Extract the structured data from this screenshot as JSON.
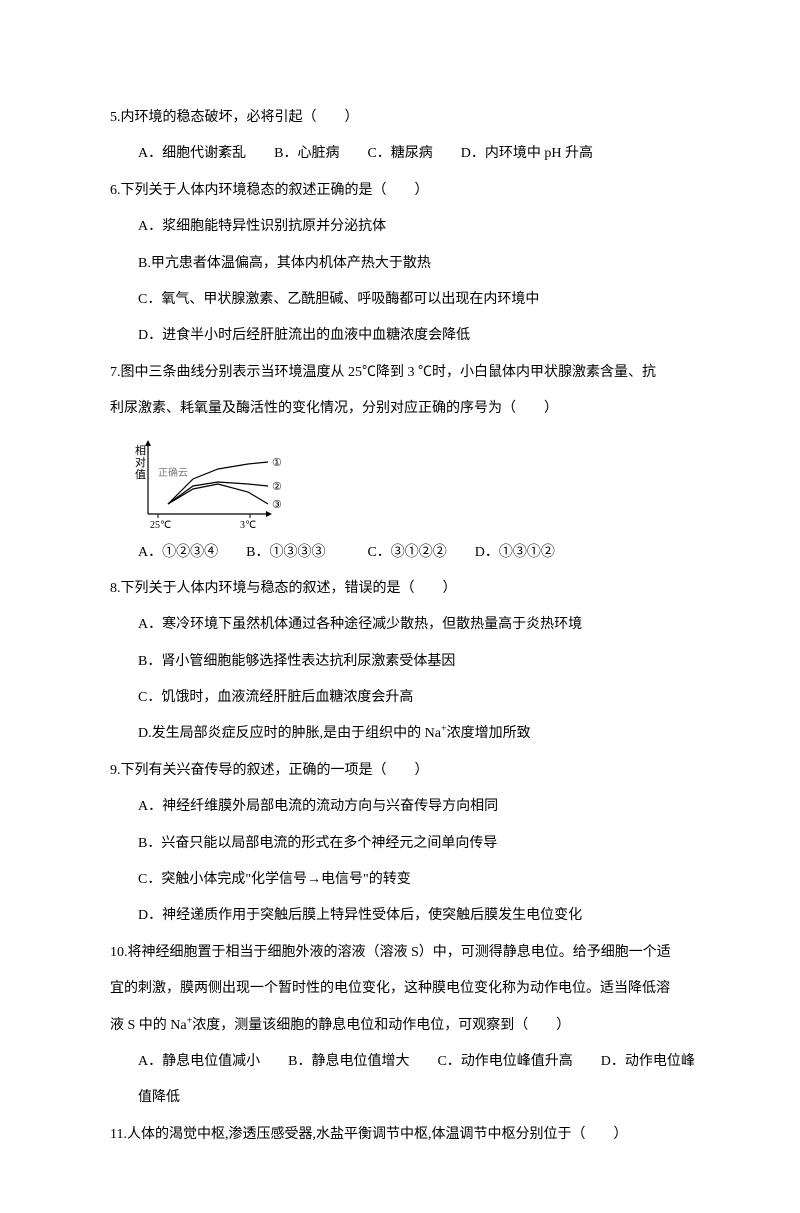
{
  "q5": {
    "stem": "5.内环境的稳态破坏，必将引起（　　）",
    "opts": "A．细胞代谢紊乱　　B．心脏病　　C．糖尿病　　D．内环境中 pH 升高"
  },
  "q6": {
    "stem": "6.下列关于人体内环境稳态的叙述正确的是（　　）",
    "a": "A．浆细胞能特异性识别抗原并分泌抗体",
    "b": "B.甲亢患者体温偏高，其体内机体产热大于散热",
    "c": "C．氧气、甲状腺激素、乙酰胆碱、呼吸酶都可以出现在内环境中",
    "d": "D．进食半小时后经肝脏流出的血液中血糖浓度会降低"
  },
  "q7": {
    "stem1": "7.图中三条曲线分别表示当环境温度从 25℃降到 3 ℃时，小白鼠体内甲状腺激素含量、抗",
    "stem2": "利尿激素、耗氧量及酶活性的变化情况，分别对应正确的序号为（　　）",
    "opts": "A．①②③④　　B．①③③③　　　C．③①②②　　D．①③①②",
    "chart": {
      "y_label": "相对值",
      "x_left": "25℃",
      "x_right": "3℃",
      "watermark": "正确云",
      "curve_labels": {
        "c1": "①",
        "c2": "②",
        "c3": "③"
      },
      "colors": {
        "axis": "#000000",
        "curve": "#000000",
        "watermark": "#7a7a7a"
      },
      "curves": {
        "c1": [
          [
            20,
            60
          ],
          [
            45,
            35
          ],
          [
            70,
            25
          ],
          [
            100,
            20
          ],
          [
            120,
            18
          ]
        ],
        "c2": [
          [
            20,
            60
          ],
          [
            45,
            42
          ],
          [
            70,
            38
          ],
          [
            100,
            40
          ],
          [
            120,
            42
          ]
        ],
        "c3": [
          [
            20,
            60
          ],
          [
            45,
            45
          ],
          [
            70,
            40
          ],
          [
            100,
            48
          ],
          [
            120,
            60
          ]
        ]
      }
    }
  },
  "q8": {
    "stem": "8.下列关于人体内环境与稳态的叙述，错误的是（　　）",
    "a": "A．寒冷环境下虽然机体通过各种途径减少散热，但散热量高于炎热环境",
    "b": "B．肾小管细胞能够选择性表达抗利尿激素受体基因",
    "c": "C．饥饿时，血液流经肝脏后血糖浓度会升高",
    "d_pre": "D.发生局部炎症反应时的肿胀,是由于组织中的 Na",
    "d_post": "浓度增加所致"
  },
  "q9": {
    "stem": "9.下列有关兴奋传导的叙述，正确的一项是（　　）",
    "a": "A．神经纤维膜外局部电流的流动方向与兴奋传导方向相同",
    "b": "B．兴奋只能以局部电流的形式在多个神经元之间单向传导",
    "c": "C．突触小体完成\"化学信号→电信号\"的转变",
    "d": "D．神经递质作用于突触后膜上特异性受体后，使突触后膜发生电位变化"
  },
  "q10": {
    "stem1": "10.将神经细胞置于相当于细胞外液的溶液（溶液 S）中，可测得静息电位。给予细胞一个适",
    "stem2": "宜的刺激，膜两侧出现一个暂时性的电位变化，这种膜电位变化称为动作电位。适当降低溶",
    "stem3_pre": "液 S 中的 Na",
    "stem3_post": "浓度，测量该细胞的静息电位和动作电位，可观察到（　　）",
    "opt_line1": "A．静息电位值减小　　B．静息电位值增大　　C．动作电位峰值升高　　D．动作电位峰",
    "opt_line2": "值降低"
  },
  "q11": {
    "stem": "11.人体的渴觉中枢,渗透压感受器,水盐平衡调节中枢,体温调节中枢分别位于（　　）"
  }
}
